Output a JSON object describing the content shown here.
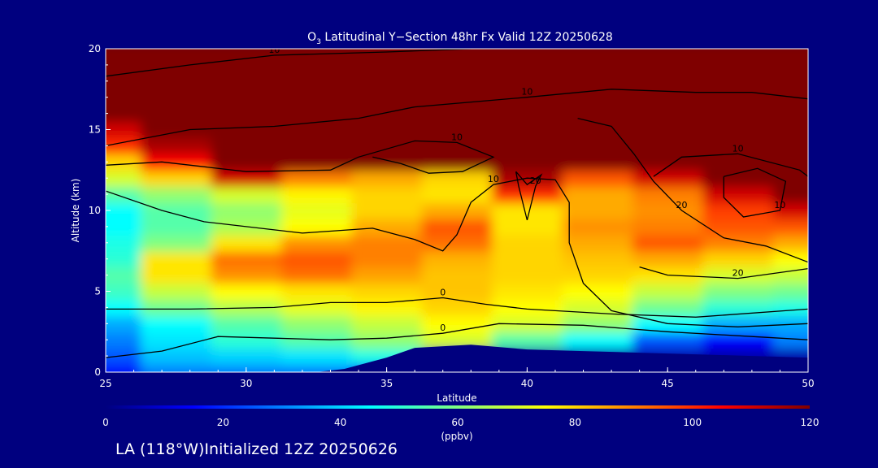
{
  "colors": {
    "background": "#00007f",
    "text": "#ffffff",
    "contour": "#000000",
    "colormap": [
      "#00007f",
      "#0000ff",
      "#0080ff",
      "#00ffff",
      "#80ff80",
      "#ffff00",
      "#ff8000",
      "#ff0000",
      "#7f0000"
    ]
  },
  "chart_data": {
    "type": "heatmap",
    "title": {
      "prefix": "O",
      "subscript": "3",
      "suffix": " Latitudinal Y−Section 48hr  Fx Valid 12Z 20250628"
    },
    "xlabel": "Latitude",
    "ylabel": "Altitude (km)",
    "xlim": [
      25,
      50
    ],
    "ylim": [
      0,
      20
    ],
    "xticks": [
      "25",
      "30",
      "35",
      "40",
      "45",
      "50"
    ],
    "yticks": [
      "0",
      "5",
      "10",
      "15",
      "20"
    ],
    "x": [
      25,
      27.5,
      30,
      32.5,
      35,
      37.5,
      40,
      42.5,
      45,
      47.5,
      50
    ],
    "y": [
      0,
      1,
      2,
      3,
      4,
      5,
      6,
      7,
      8,
      9,
      10,
      11,
      12,
      13,
      14,
      15,
      16,
      17,
      18,
      19,
      20
    ],
    "z": [
      [
        15,
        30,
        30,
        30,
        20,
        8,
        5,
        5,
        5,
        5,
        5
      ],
      [
        25,
        38,
        40,
        42,
        48,
        5,
        5,
        5,
        5,
        5,
        5
      ],
      [
        30,
        42,
        50,
        55,
        62,
        70,
        55,
        45,
        25,
        15,
        30
      ],
      [
        35,
        45,
        55,
        62,
        68,
        75,
        70,
        62,
        45,
        35,
        35
      ],
      [
        45,
        58,
        66,
        72,
        76,
        80,
        75,
        70,
        58,
        50,
        48
      ],
      [
        52,
        68,
        75,
        78,
        80,
        82,
        78,
        75,
        68,
        60,
        58
      ],
      [
        55,
        78,
        88,
        92,
        86,
        82,
        80,
        80,
        78,
        70,
        68
      ],
      [
        50,
        78,
        92,
        95,
        90,
        84,
        80,
        82,
        85,
        80,
        75
      ],
      [
        48,
        60,
        78,
        88,
        90,
        92,
        80,
        85,
        95,
        90,
        85
      ],
      [
        45,
        55,
        65,
        75,
        85,
        95,
        78,
        88,
        90,
        95,
        95
      ],
      [
        45,
        55,
        62,
        72,
        80,
        85,
        78,
        85,
        88,
        98,
        110
      ],
      [
        55,
        62,
        70,
        76,
        80,
        78,
        100,
        85,
        90,
        110,
        120
      ],
      [
        70,
        80,
        110,
        90,
        85,
        80,
        115,
        95,
        110,
        120,
        120
      ],
      [
        80,
        105,
        120,
        120,
        120,
        120,
        120,
        120,
        120,
        120,
        120
      ],
      [
        100,
        115,
        120,
        120,
        120,
        120,
        120,
        120,
        120,
        120,
        120
      ],
      [
        110,
        120,
        120,
        120,
        120,
        120,
        120,
        120,
        120,
        120,
        120
      ],
      [
        120,
        120,
        120,
        120,
        120,
        120,
        120,
        120,
        120,
        120,
        120
      ],
      [
        120,
        120,
        120,
        120,
        120,
        120,
        120,
        120,
        120,
        120,
        120
      ],
      [
        120,
        120,
        120,
        120,
        120,
        120,
        120,
        120,
        120,
        120,
        120
      ],
      [
        120,
        120,
        120,
        120,
        120,
        120,
        120,
        120,
        120,
        120,
        120
      ],
      [
        120,
        120,
        120,
        120,
        120,
        120,
        120,
        120,
        120,
        120,
        120
      ]
    ],
    "terrain": {
      "x": [
        25,
        32.5,
        33.5,
        35,
        36,
        38,
        40,
        42,
        44,
        46,
        48,
        50
      ],
      "y": [
        0,
        0,
        0.2,
        0.9,
        1.5,
        1.7,
        1.4,
        1.3,
        1.2,
        1.1,
        1.0,
        0.9
      ]
    },
    "contours": [
      {
        "label": "0",
        "points": [
          [
            25,
            3.9
          ],
          [
            28,
            3.9
          ],
          [
            31,
            4.0
          ],
          [
            33,
            4.3
          ],
          [
            35,
            4.3
          ],
          [
            37,
            4.6
          ],
          [
            38.5,
            4.2
          ],
          [
            40,
            3.9
          ],
          [
            43,
            3.6
          ],
          [
            46,
            3.4
          ],
          [
            50,
            3.9
          ]
        ]
      },
      {
        "label": "0",
        "points": [
          [
            25,
            0.9
          ],
          [
            27,
            1.3
          ],
          [
            29,
            2.2
          ],
          [
            31,
            2.1
          ],
          [
            33,
            2.0
          ],
          [
            35,
            2.1
          ],
          [
            37,
            2.4
          ],
          [
            39,
            3.0
          ],
          [
            42,
            2.9
          ],
          [
            45,
            2.5
          ],
          [
            48,
            2.2
          ],
          [
            50,
            2.0
          ]
        ]
      },
      {
        "label": "10",
        "points": [
          [
            25,
            11.2
          ],
          [
            27,
            10.0
          ],
          [
            28.5,
            9.3
          ],
          [
            30,
            9.0
          ],
          [
            32,
            8.6
          ],
          [
            34.5,
            8.9
          ],
          [
            36,
            8.2
          ],
          [
            37,
            7.5
          ],
          [
            37.5,
            8.5
          ],
          [
            38,
            10.5
          ],
          [
            38.8,
            11.6
          ],
          [
            40,
            12.0
          ],
          [
            41,
            11.9
          ],
          [
            41.5,
            10.5
          ],
          [
            41.5,
            8.0
          ],
          [
            42,
            5.5
          ],
          [
            43,
            3.8
          ],
          [
            45,
            3.0
          ],
          [
            47.5,
            2.8
          ],
          [
            50,
            3.0
          ]
        ]
      },
      {
        "label": "10",
        "points": [
          [
            25,
            12.8
          ],
          [
            27,
            13.0
          ],
          [
            30,
            12.4
          ],
          [
            33,
            12.5
          ],
          [
            34,
            13.3
          ],
          [
            36,
            14.3
          ],
          [
            37.5,
            14.2
          ],
          [
            38.8,
            13.3
          ],
          [
            37.7,
            12.4
          ],
          [
            36.5,
            12.3
          ],
          [
            35.5,
            12.9
          ],
          [
            34.5,
            13.3
          ]
        ]
      },
      {
        "label": "10",
        "points": [
          [
            25,
            14.0
          ],
          [
            28,
            15.0
          ],
          [
            31,
            15.2
          ],
          [
            34,
            15.7
          ],
          [
            36,
            16.4
          ],
          [
            40,
            17.0
          ],
          [
            43,
            17.5
          ],
          [
            46,
            17.3
          ],
          [
            48,
            17.3
          ],
          [
            50,
            16.9
          ]
        ]
      },
      {
        "label": "10",
        "points": [
          [
            25,
            18.3
          ],
          [
            28,
            19.0
          ],
          [
            31,
            19.6
          ],
          [
            35,
            19.8
          ],
          [
            38,
            20.0
          ]
        ]
      },
      {
        "label": "20",
        "points": [
          [
            41.8,
            15.7
          ],
          [
            43,
            15.2
          ],
          [
            43.8,
            13.5
          ],
          [
            44.5,
            11.8
          ],
          [
            45.5,
            10.0
          ],
          [
            47,
            8.3
          ],
          [
            48.5,
            7.8
          ],
          [
            50,
            6.8
          ]
        ]
      },
      {
        "label": "20",
        "points": [
          [
            44,
            6.5
          ],
          [
            45,
            6.0
          ],
          [
            47.5,
            5.8
          ],
          [
            50,
            6.4
          ]
        ]
      },
      {
        "label": "10",
        "points": [
          [
            47,
            12.1
          ],
          [
            48.2,
            12.6
          ],
          [
            49.2,
            11.8
          ],
          [
            49,
            10.0
          ],
          [
            47.7,
            9.6
          ],
          [
            47,
            10.8
          ],
          [
            47,
            12.1
          ]
        ]
      },
      {
        "label": "10",
        "points": [
          [
            44.5,
            12.1
          ],
          [
            45.5,
            13.3
          ],
          [
            47.5,
            13.5
          ],
          [
            49.7,
            12.5
          ],
          [
            50,
            12.1
          ]
        ]
      },
      {
        "label": "20",
        "points": [
          [
            39.6,
            12.4
          ],
          [
            40,
            11.6
          ],
          [
            40.5,
            12.2
          ],
          [
            40.3,
            11.5
          ],
          [
            40,
            9.4
          ],
          [
            39.7,
            11.5
          ],
          [
            39.6,
            12.4
          ]
        ]
      }
    ],
    "colorbar": {
      "min": 0,
      "max": 120,
      "ticks": [
        "0",
        "20",
        "40",
        "60",
        "80",
        "100",
        "120"
      ],
      "label": "(ppbv)"
    }
  },
  "footer": "LA (118°W)Initialized 12Z 20250626"
}
